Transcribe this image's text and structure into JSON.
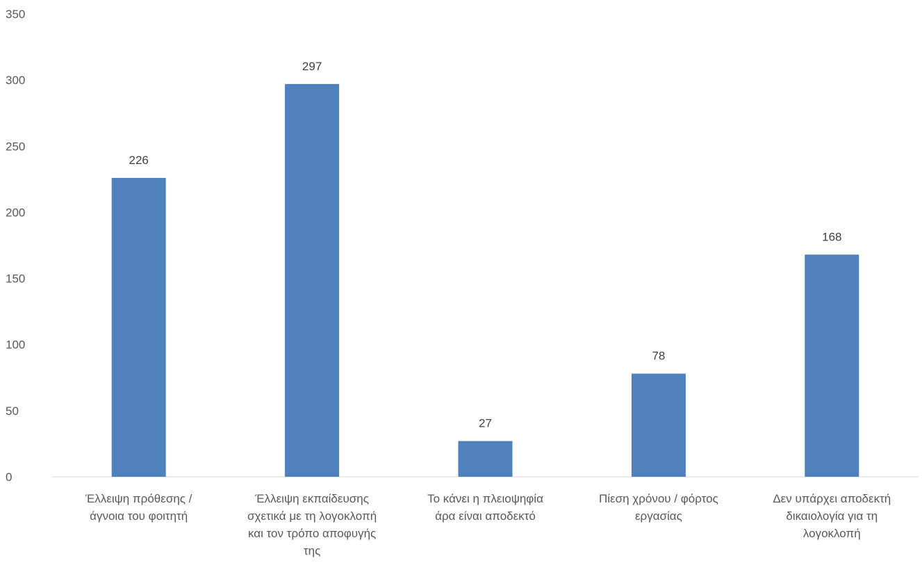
{
  "chart_data": {
    "type": "bar",
    "categories": [
      [
        "Έλλειψη πρόθεσης /",
        "άγνοια του φοιτητή"
      ],
      [
        "Έλλειψη εκπαίδευσης",
        "σχετικά με τη λογοκλοπή",
        "και τον τρόπο αποφυγής",
        "της"
      ],
      [
        "Το κάνει η πλειοψηφία",
        "άρα είναι αποδεκτό"
      ],
      [
        "Πίεση χρόνου / φόρτος",
        "εργασίας"
      ],
      [
        "Δεν υπάρχει αποδεκτή",
        "δικαιολογία για τη",
        "λογοκλοπή"
      ]
    ],
    "values": [
      226,
      297,
      27,
      78,
      168
    ],
    "data_labels": [
      "226",
      "297",
      "27",
      "78",
      "168"
    ],
    "title": "",
    "xlabel": "",
    "ylabel": "",
    "ylim": [
      0,
      350
    ],
    "yticks": [
      0,
      50,
      100,
      150,
      200,
      250,
      300,
      350
    ],
    "grid": false,
    "legend": "none",
    "bar_color": "#4f81bd",
    "axis_color": "#d9d9d9"
  }
}
